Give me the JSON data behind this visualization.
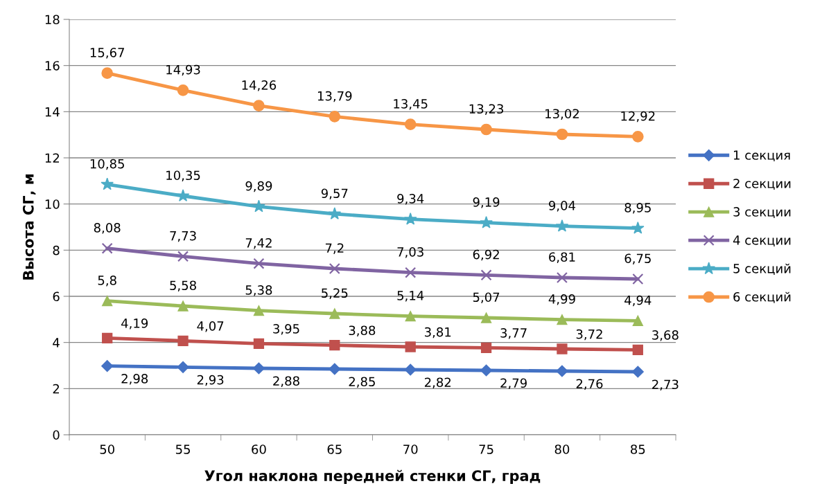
{
  "chart_data": {
    "type": "line",
    "xlabel": "Угол наклона передней стенки СГ, град",
    "ylabel": "Высота СГ, м",
    "categories": [
      "50",
      "55",
      "60",
      "65",
      "70",
      "75",
      "80",
      "85"
    ],
    "ylim": [
      0,
      18
    ],
    "yticks": [
      0,
      2,
      4,
      6,
      8,
      10,
      12,
      14,
      16,
      18
    ],
    "grid": "y",
    "legend": "right",
    "series": [
      {
        "name": "1 секция",
        "color": "#4472c4",
        "marker": "diamond",
        "values": [
          2.98,
          2.93,
          2.88,
          2.85,
          2.82,
          2.79,
          2.76,
          2.73
        ],
        "value_labels": [
          "2,98",
          "2,93",
          "2,88",
          "2,85",
          "2,82",
          "2,79",
          "2,76",
          "2,73"
        ]
      },
      {
        "name": "2 секции",
        "color": "#c0504d",
        "marker": "square",
        "values": [
          4.19,
          4.07,
          3.95,
          3.88,
          3.81,
          3.77,
          3.72,
          3.68
        ],
        "value_labels": [
          "4,19",
          "4,07",
          "3,95",
          "3,88",
          "3,81",
          "3,77",
          "3,72",
          "3,68"
        ]
      },
      {
        "name": "3 секции",
        "color": "#9bbb59",
        "marker": "triangle",
        "values": [
          5.8,
          5.58,
          5.38,
          5.25,
          5.14,
          5.07,
          4.99,
          4.94
        ],
        "value_labels": [
          "5,8",
          "5,58",
          "5,38",
          "5,25",
          "5,14",
          "5,07",
          "4,99",
          "4,94"
        ]
      },
      {
        "name": "4 секции",
        "color": "#8064a2",
        "marker": "cross",
        "values": [
          8.08,
          7.73,
          7.42,
          7.2,
          7.03,
          6.92,
          6.81,
          6.75
        ],
        "value_labels": [
          "8,08",
          "7,73",
          "7,42",
          "7,2",
          "7,03",
          "6,92",
          "6,81",
          "6,75"
        ]
      },
      {
        "name": "5 секций",
        "color": "#4bacc6",
        "marker": "star",
        "values": [
          10.85,
          10.35,
          9.89,
          9.57,
          9.34,
          9.19,
          9.04,
          8.95
        ],
        "value_labels": [
          "10,85",
          "10,35",
          "9,89",
          "9,57",
          "9,34",
          "9,19",
          "9,04",
          "8,95"
        ]
      },
      {
        "name": "6 секций",
        "color": "#f79646",
        "marker": "circle",
        "values": [
          15.67,
          14.93,
          14.26,
          13.79,
          13.45,
          13.23,
          13.02,
          12.92
        ],
        "value_labels": [
          "15,67",
          "14,93",
          "14,26",
          "13,79",
          "13,45",
          "13,23",
          "13,02",
          "12,92"
        ]
      }
    ]
  }
}
